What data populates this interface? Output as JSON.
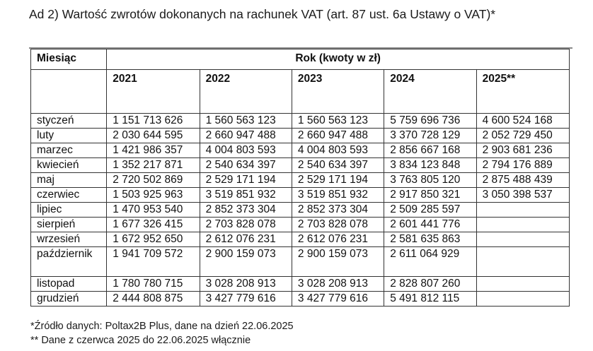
{
  "document": {
    "title": "Ad 2) Wartość zwrotów dokonanych na rachunek VAT (art. 87 ust. 6a Ustawy o VAT)*"
  },
  "table": {
    "header_month": "Miesiąc",
    "header_year_group": "Rok (kwoty w zł)",
    "years": [
      "2021",
      "2022",
      "2023",
      "2024",
      "2025**"
    ],
    "rows": [
      {
        "month": "styczeń",
        "values": [
          "1 151 713 626",
          "1 560 563 123",
          "1 560 563 123",
          "5 759 696 736",
          "4 600 524 168"
        ]
      },
      {
        "month": "luty",
        "values": [
          "2 030 644 595",
          "2 660 947 488",
          "2 660 947 488",
          "3 370 728 129",
          "2 052 729 450"
        ]
      },
      {
        "month": "marzec",
        "values": [
          "1 421 986 357",
          "4 004 803 593",
          "4 004 803 593",
          "2 856 667 168",
          "2 903 681 236"
        ]
      },
      {
        "month": "kwiecień",
        "values": [
          "1 352 217 871",
          "2 540 634 397",
          "2 540 634 397",
          "3 834 123 848",
          "2 794 176 889"
        ]
      },
      {
        "month": "maj",
        "values": [
          "2 720 502 869",
          "2 529 171 194",
          "2 529 171 194",
          "3 763 805 120",
          "2 875 488 439"
        ]
      },
      {
        "month": "czerwiec",
        "values": [
          "1 503 925 963",
          "3 519 851 932",
          "3 519 851 932",
          "2 917 850 321",
          "3 050 398 537"
        ]
      },
      {
        "month": "lipiec",
        "values": [
          "1 470 953 540",
          "2 852 373 304",
          "2 852 373 304",
          "2 509 285 597",
          ""
        ]
      },
      {
        "month": "sierpień",
        "values": [
          "1 677 326 415",
          "2 703 828 078",
          "2 703 828 078",
          "2 601 441 776",
          ""
        ]
      },
      {
        "month": "wrzesień",
        "values": [
          "1 672 952 650",
          "2 612 076 231",
          "2 612 076 231",
          "2 581 635 863",
          ""
        ]
      },
      {
        "month": "październik",
        "values": [
          "1 941 709 572",
          "2 900 159 073",
          "2 900 159 073",
          "2 611 064 929",
          ""
        ]
      },
      {
        "month": "listopad",
        "values": [
          "1 780 780 715",
          "3 028 208 913",
          "3 028 208 913",
          "2 828 807 260",
          ""
        ]
      },
      {
        "month": "grudzień",
        "values": [
          "2 444 808 875",
          "3 427 779 616",
          "3 427 779 616",
          "5 491 812 115",
          ""
        ]
      }
    ]
  },
  "footnotes": [
    "*Źródło danych: Poltax2B Plus, dane na dzień 22.06.2025",
    "** Dane z czerwca 2025 do 22.06.2025 włącznie"
  ]
}
